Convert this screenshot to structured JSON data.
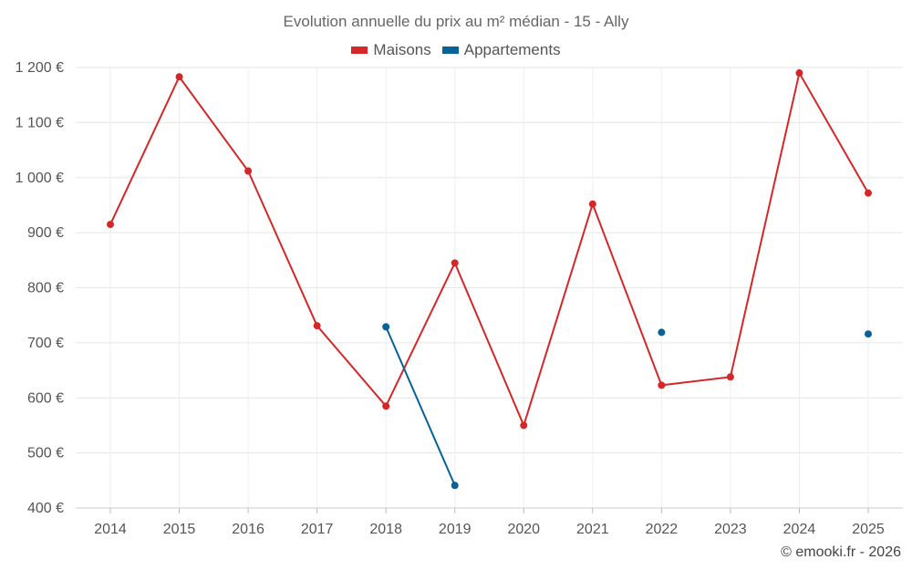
{
  "chart_data": {
    "type": "line",
    "title": "Evolution annuelle du prix au m² médian - 15 - Ally",
    "categories": [
      "2014",
      "2015",
      "2016",
      "2017",
      "2018",
      "2019",
      "2020",
      "2021",
      "2022",
      "2023",
      "2024",
      "2025"
    ],
    "ylim": [
      400,
      1200
    ],
    "yticks": [
      400,
      500,
      600,
      700,
      800,
      900,
      1000,
      1100,
      1200
    ],
    "ytick_labels": [
      "400 €",
      "500 €",
      "600 €",
      "700 €",
      "800 €",
      "900 €",
      "1 000 €",
      "1 100 €",
      "1 200 €"
    ],
    "grid": true,
    "legend_position": "top-center",
    "series": [
      {
        "name": "Maisons",
        "color": "#d62728",
        "values": [
          915,
          1183,
          1012,
          731,
          585,
          845,
          550,
          952,
          623,
          638,
          1190,
          972
        ]
      },
      {
        "name": "Appartements",
        "color": "#08629a",
        "values": [
          null,
          null,
          null,
          null,
          729,
          441,
          null,
          null,
          719,
          null,
          null,
          716
        ]
      }
    ]
  },
  "credit": "© emooki.fr - 2026"
}
